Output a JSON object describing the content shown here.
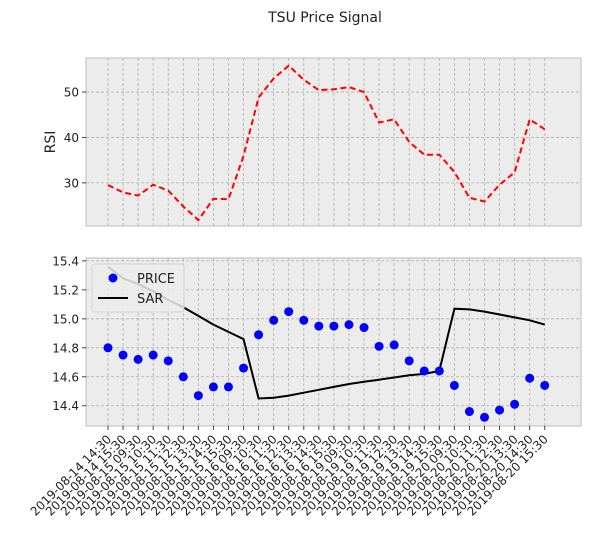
{
  "chart_data": {
    "title": "TSU Price Signal",
    "x_labels": [
      "2019-08-14 14:30",
      "2019-08-14 15:30",
      "2019-08-15 09:30",
      "2019-08-15 10:30",
      "2019-08-15 11:30",
      "2019-08-15 12:30",
      "2019-08-15 13:30",
      "2019-08-15 14:30",
      "2019-08-15 15:30",
      "2019-08-16 09:30",
      "2019-08-16 10:30",
      "2019-08-16 11:30",
      "2019-08-16 12:30",
      "2019-08-16 13:30",
      "2019-08-16 14:30",
      "2019-08-16 15:30",
      "2019-08-19 09:30",
      "2019-08-19 10:30",
      "2019-08-19 11:30",
      "2019-08-19 12:30",
      "2019-08-19 13:30",
      "2019-08-19 14:30",
      "2019-08-19 15:30",
      "2019-08-20 09:30",
      "2019-08-20 10:30",
      "2019-08-20 11:30",
      "2019-08-20 12:30",
      "2019-08-20 13:30",
      "2019-08-20 14:30",
      "2019-08-20 15:30"
    ],
    "panels": [
      {
        "type": "line",
        "ylabel": "RSI",
        "ylim": [
          20.5,
          57.5
        ],
        "yticks": [
          30,
          40,
          50
        ],
        "grid": true,
        "series": [
          {
            "values": [
              29.5,
              27.9,
              27.2,
              29.6,
              28.3,
              24.8,
              21.8,
              26.5,
              26.4,
              35.9,
              48.8,
              53.0,
              55.8,
              52.7,
              50.4,
              50.6,
              51.1,
              50.0,
              43.3,
              44.0,
              39.0,
              36.2,
              36.2,
              32.4,
              26.7,
              25.9,
              29.6,
              32.3,
              44.0,
              41.8
            ],
            "color": "#ff0000",
            "style": "dashed"
          }
        ]
      },
      {
        "type": "line+scatter",
        "ylim": [
          14.26,
          15.42
        ],
        "yticks": [
          "14.4",
          "14.6",
          "14.8",
          "15.0",
          "15.2",
          "15.4"
        ],
        "grid": true,
        "legend_position": "top-left",
        "series": [
          {
            "name": "PRICE",
            "type": "scatter",
            "color": "#0000ff",
            "values": [
              14.8,
              14.75,
              14.72,
              14.75,
              14.71,
              14.6,
              14.47,
              14.53,
              14.53,
              14.66,
              14.89,
              14.99,
              15.05,
              14.99,
              14.95,
              14.95,
              14.96,
              14.94,
              14.81,
              14.82,
              14.71,
              14.64,
              14.64,
              14.54,
              14.36,
              14.32,
              14.37,
              14.41,
              14.59,
              14.54
            ]
          },
          {
            "name": "SAR",
            "type": "line",
            "color": "#000000",
            "values": [
              15.36,
              15.28,
              15.24,
              15.19,
              15.13,
              15.08,
              15.02,
              14.96,
              14.91,
              14.86,
              14.45,
              14.455,
              14.47,
              14.49,
              14.51,
              14.53,
              14.55,
              14.565,
              14.58,
              14.595,
              14.61,
              14.62,
              14.64,
              15.07,
              15.065,
              15.05,
              15.03,
              15.01,
              14.99,
              14.96
            ]
          }
        ]
      }
    ]
  }
}
